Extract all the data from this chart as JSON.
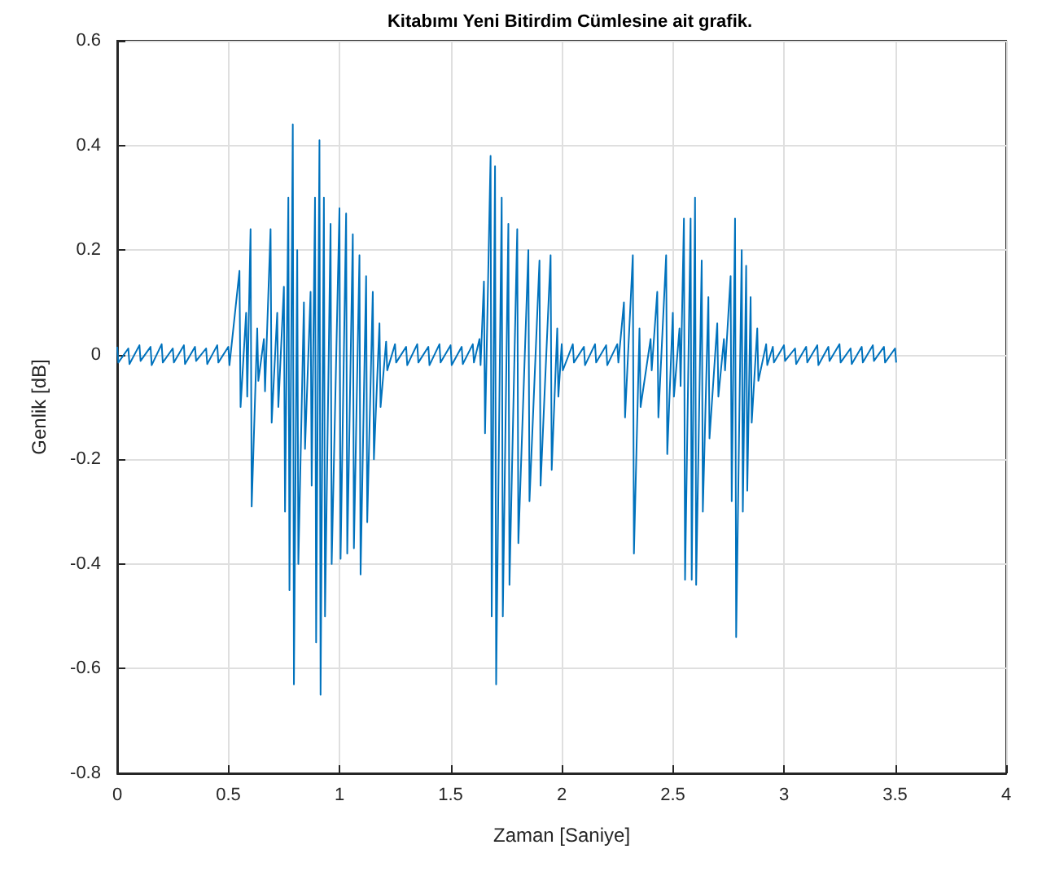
{
  "chart_data": {
    "type": "line",
    "title": "Kitabımı Yeni Bitirdim Cümlesine ait grafik.",
    "xlabel": "Zaman [Saniye]",
    "ylabel": "Genlik [dB]",
    "xlim": [
      0,
      4
    ],
    "xticks": [
      0,
      0.5,
      1,
      1.5,
      2,
      2.5,
      3,
      3.5,
      4
    ],
    "ylim": [
      -0.8,
      0.6
    ],
    "yticks": [
      -0.8,
      -0.6,
      -0.4,
      -0.2,
      0,
      0.2,
      0.4,
      0.6
    ],
    "grid": true,
    "marker": "none",
    "line_style": "solid",
    "series": [
      {
        "color": "#0072bd",
        "x": [
          0,
          0.005,
          0.05,
          0.055,
          0.1,
          0.105,
          0.15,
          0.155,
          0.2,
          0.205,
          0.25,
          0.255,
          0.3,
          0.305,
          0.35,
          0.355,
          0.4,
          0.405,
          0.45,
          0.455,
          0.5,
          0.505,
          0.55,
          0.555,
          0.58,
          0.585,
          0.6,
          0.605,
          0.63,
          0.635,
          0.66,
          0.665,
          0.69,
          0.695,
          0.72,
          0.725,
          0.75,
          0.755,
          0.77,
          0.775,
          0.79,
          0.795,
          0.81,
          0.815,
          0.84,
          0.845,
          0.87,
          0.875,
          0.89,
          0.895,
          0.91,
          0.915,
          0.93,
          0.935,
          0.96,
          0.965,
          1,
          1.005,
          1.03,
          1.035,
          1.06,
          1.065,
          1.09,
          1.095,
          1.12,
          1.125,
          1.15,
          1.155,
          1.18,
          1.185,
          1.21,
          1.215,
          1.25,
          1.255,
          1.3,
          1.305,
          1.35,
          1.355,
          1.4,
          1.405,
          1.45,
          1.455,
          1.5,
          1.505,
          1.55,
          1.555,
          1.6,
          1.605,
          1.63,
          1.635,
          1.65,
          1.655,
          1.68,
          1.685,
          1.7,
          1.705,
          1.73,
          1.735,
          1.76,
          1.765,
          1.8,
          1.805,
          1.85,
          1.855,
          1.9,
          1.905,
          1.95,
          1.955,
          1.98,
          1.985,
          2,
          2.005,
          2.05,
          2.055,
          2.1,
          2.105,
          2.15,
          2.155,
          2.2,
          2.205,
          2.25,
          2.255,
          2.28,
          2.285,
          2.32,
          2.325,
          2.35,
          2.355,
          2.4,
          2.405,
          2.43,
          2.435,
          2.47,
          2.475,
          2.5,
          2.505,
          2.53,
          2.535,
          2.55,
          2.555,
          2.58,
          2.585,
          2.6,
          2.605,
          2.63,
          2.635,
          2.66,
          2.665,
          2.7,
          2.705,
          2.73,
          2.735,
          2.76,
          2.765,
          2.78,
          2.785,
          2.81,
          2.815,
          2.83,
          2.835,
          2.85,
          2.855,
          2.88,
          2.885,
          2.92,
          2.925,
          2.95,
          2.955,
          3,
          3.005,
          3.05,
          3.055,
          3.1,
          3.105,
          3.15,
          3.155,
          3.2,
          3.205,
          3.25,
          3.255,
          3.3,
          3.305,
          3.35,
          3.355,
          3.4,
          3.405,
          3.45,
          3.455,
          3.5,
          3.505
        ],
        "values": [
          0.015,
          -0.015,
          0.012,
          -0.018,
          0.018,
          -0.012,
          0.015,
          -0.02,
          0.02,
          -0.015,
          0.012,
          -0.015,
          0.018,
          -0.018,
          0.015,
          -0.012,
          0.012,
          -0.018,
          0.018,
          -0.015,
          0.015,
          -0.02,
          0.16,
          -0.1,
          0.08,
          -0.08,
          0.24,
          -0.29,
          0.05,
          -0.05,
          0.03,
          -0.07,
          0.24,
          -0.13,
          0.08,
          -0.1,
          0.13,
          -0.3,
          0.3,
          -0.45,
          0.44,
          -0.63,
          0.2,
          -0.4,
          0.1,
          -0.18,
          0.12,
          -0.25,
          0.3,
          -0.55,
          0.41,
          -0.65,
          0.3,
          -0.5,
          0.25,
          -0.4,
          0.28,
          -0.39,
          0.27,
          -0.38,
          0.23,
          -0.37,
          0.19,
          -0.42,
          0.15,
          -0.32,
          0.12,
          -0.2,
          0.06,
          -0.1,
          0.025,
          -0.03,
          0.02,
          -0.015,
          0.015,
          -0.02,
          0.02,
          -0.015,
          0.015,
          -0.02,
          0.02,
          -0.015,
          0.018,
          -0.02,
          0.015,
          -0.018,
          0.02,
          -0.015,
          0.03,
          -0.02,
          0.14,
          -0.15,
          0.38,
          -0.5,
          0.36,
          -0.63,
          0.3,
          -0.5,
          0.25,
          -0.44,
          0.24,
          -0.36,
          0.2,
          -0.28,
          0.18,
          -0.25,
          0.19,
          -0.22,
          0.05,
          -0.08,
          0.02,
          -0.03,
          0.02,
          -0.015,
          0.015,
          -0.02,
          0.02,
          -0.015,
          0.018,
          -0.02,
          0.02,
          -0.015,
          0.1,
          -0.12,
          0.19,
          -0.38,
          0.05,
          -0.1,
          0.03,
          -0.03,
          0.12,
          -0.12,
          0.19,
          -0.19,
          0.08,
          -0.08,
          0.05,
          -0.06,
          0.26,
          -0.43,
          0.26,
          -0.43,
          0.3,
          -0.44,
          0.18,
          -0.3,
          0.11,
          -0.16,
          0.06,
          -0.08,
          0.03,
          -0.03,
          0.15,
          -0.28,
          0.26,
          -0.54,
          0.2,
          -0.3,
          0.17,
          -0.26,
          0.11,
          -0.13,
          0.05,
          -0.05,
          0.02,
          -0.02,
          0.015,
          -0.015,
          0.018,
          -0.012,
          0.012,
          -0.018,
          0.015,
          -0.015,
          0.018,
          -0.02,
          0.015,
          -0.012,
          0.02,
          -0.015,
          0.012,
          -0.018,
          0.015,
          -0.015,
          0.018,
          -0.012,
          0.015,
          -0.015,
          0.012,
          -0.015
        ]
      }
    ]
  }
}
